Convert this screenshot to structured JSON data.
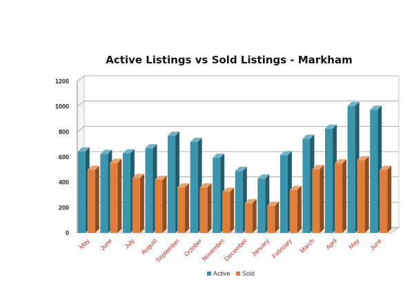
{
  "chart_data": {
    "type": "bar",
    "title": "Active Listings vs Sold Listings - Markham",
    "categories": [
      "May",
      "June",
      "July",
      "August",
      "September",
      "October",
      "November",
      "December",
      "January",
      "February",
      "March",
      "April",
      "May",
      "June"
    ],
    "series": [
      {
        "name": "Active",
        "color": "#3a95ad",
        "values": [
          645,
          625,
          630,
          670,
          770,
          720,
          595,
          490,
          430,
          615,
          745,
          825,
          1005,
          975
        ]
      },
      {
        "name": "Sold",
        "color": "#e07f3b",
        "values": [
          500,
          555,
          435,
          420,
          360,
          360,
          325,
          235,
          215,
          340,
          505,
          550,
          575,
          500
        ]
      }
    ],
    "yticks": [
      "0",
      "200",
      "400",
      "600",
      "800",
      "1000",
      "1200"
    ],
    "ylim": [
      0,
      1200
    ],
    "xlabel": "",
    "ylabel": "",
    "grid": true,
    "legend": "bottom-center",
    "style": "3d-clustered-column"
  }
}
